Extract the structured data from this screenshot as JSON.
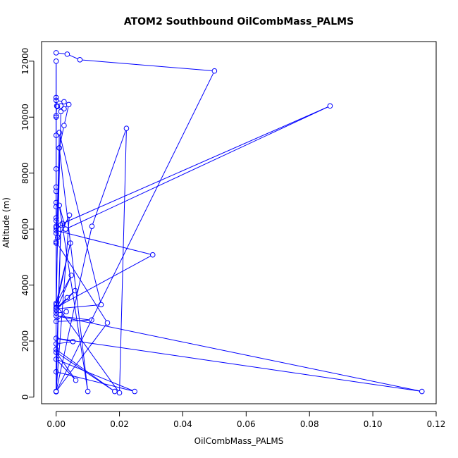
{
  "chart_data": {
    "type": "line",
    "title": "ATOM2 Southbound OilCombMass_PALMS",
    "xlabel": "OilCombMass_PALMS",
    "ylabel": "Altitude (m)",
    "xlim": [
      -0.0046,
      0.12
    ],
    "ylim": [
      -240,
      12700
    ],
    "xticks": [
      0.0,
      0.02,
      0.04,
      0.06,
      0.08,
      0.1,
      0.12
    ],
    "xtick_labels": [
      "0.00",
      "0.02",
      "0.04",
      "0.06",
      "0.08",
      "0.10",
      "0.12"
    ],
    "yticks": [
      0,
      2000,
      4000,
      6000,
      8000,
      10000,
      12000
    ],
    "ytick_labels": [
      "0",
      "2000",
      "4000",
      "6000",
      "8000",
      "10000",
      "12000"
    ],
    "grid": false,
    "line_color": "#0000ff",
    "series": [
      {
        "name": "",
        "x": [
          0.0,
          0.0035,
          0.0075,
          0.05,
          0.0,
          0.0,
          0.0,
          0.0,
          0.0025,
          0.0015,
          0.0004,
          0.0002,
          0.0,
          0.0,
          0.0,
          0.0,
          0.0,
          0.0,
          0.0,
          0.0,
          0.0,
          0.0,
          0.0,
          0.0,
          0.0,
          0.0005,
          0.0015,
          0.0025,
          0.004,
          0.0025,
          0.001,
          0.0,
          0.0042,
          0.0,
          0.0113,
          0.0222,
          0.02,
          0.0,
          0.001,
          0.01,
          0.001,
          0.003,
          0.0865,
          0.002,
          0.0,
          0.0305,
          0.0,
          0.0045,
          0.0,
          0.0048,
          0.0,
          0.006,
          0.0035,
          0.0,
          0.0142,
          0.001,
          0.0,
          0.0032,
          0.0,
          0.0112,
          0.0,
          0.1155,
          0.0,
          0.0053,
          0.0,
          0.0,
          0.0185,
          0.0,
          0.0062,
          0.0,
          0.0248,
          0.0,
          0.0015,
          0.0,
          0.0162,
          0.0
        ],
        "y": [
          12300,
          12250,
          12050,
          11650,
          190,
          12000,
          10700,
          10600,
          10550,
          10400,
          10380,
          10400,
          10050,
          10000,
          9350,
          8150,
          7500,
          7350,
          6950,
          6800,
          6400,
          6300,
          6100,
          6050,
          5850,
          5700,
          10200,
          10300,
          10450,
          9700,
          8900,
          5500,
          6500,
          200,
          6100,
          9600,
          150,
          3300,
          8900,
          200,
          6850,
          6000,
          10400,
          6200,
          5950,
          5080,
          3200,
          5500,
          3350,
          4350,
          3100,
          3800,
          3550,
          3150,
          3300,
          9450,
          3000,
          3050,
          2700,
          2750,
          2900,
          200,
          2100,
          1980,
          1900,
          1700,
          200,
          1600,
          600,
          1350,
          200,
          900,
          6150,
          200,
          2650,
          5550
        ]
      }
    ]
  }
}
